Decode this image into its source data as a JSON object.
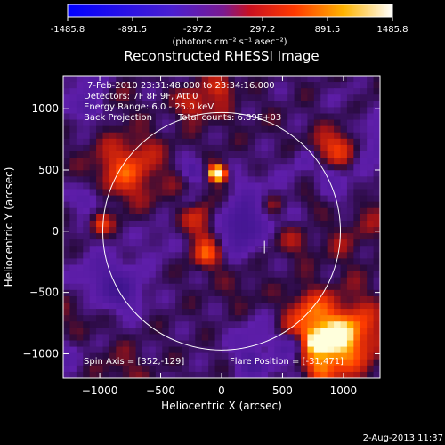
{
  "chart_data": {
    "type": "heatmap",
    "title": "Reconstructed RHESSI Image",
    "colorbar": {
      "ticks": [
        "-1485.8",
        "-891.5",
        "-297.2",
        "297.2",
        "891.5",
        "1485.8"
      ],
      "tick_values": [
        -1485.8,
        -891.5,
        -297.2,
        297.2,
        891.5,
        1485.8
      ],
      "range": [
        -1485.8,
        1485.8
      ],
      "units_label": "(photons cm⁻² s⁻¹ asec⁻²)",
      "colors": [
        "#0000ff",
        "#5a1fa0",
        "#ff1a00",
        "#ffb400",
        "#ffffff"
      ]
    },
    "xlabel": "Heliocentric X (arcsec)",
    "ylabel": "Heliocentric Y (arcsec)",
    "xlim": [
      -1300,
      1300
    ],
    "ylim": [
      -1200,
      1270
    ],
    "xticks": [
      -1000,
      -500,
      0,
      500,
      1000
    ],
    "yticks": [
      -1000,
      -500,
      0,
      500,
      1000
    ],
    "xtick_labels": [
      "−1000",
      "−500",
      "0",
      "500",
      "1000"
    ],
    "ytick_labels": [
      "−1000",
      "−500",
      "0",
      "500",
      "1000"
    ],
    "annotations": {
      "time": "7-Feb-2010 23:31:48.000 to 23:34:16.000",
      "detectors": "Detectors: 7F 8F 9F, Att 0",
      "energy": "Energy Range: 6.0 - 25.0 keV",
      "method": "Back Projection",
      "total_counts": "Total counts: 6.89E+03",
      "spin_axis": "Spin Axis = [352,-129]",
      "flare_position": "Flare Position = [-31,471]"
    },
    "solar_limb": {
      "center": [
        0,
        0
      ],
      "radius": 975
    },
    "spin_axis_xy": [
      352,
      -129
    ],
    "flare_xy": [
      -31,
      471
    ]
  },
  "footer": {
    "date": "2-Aug-2013 11:37"
  }
}
